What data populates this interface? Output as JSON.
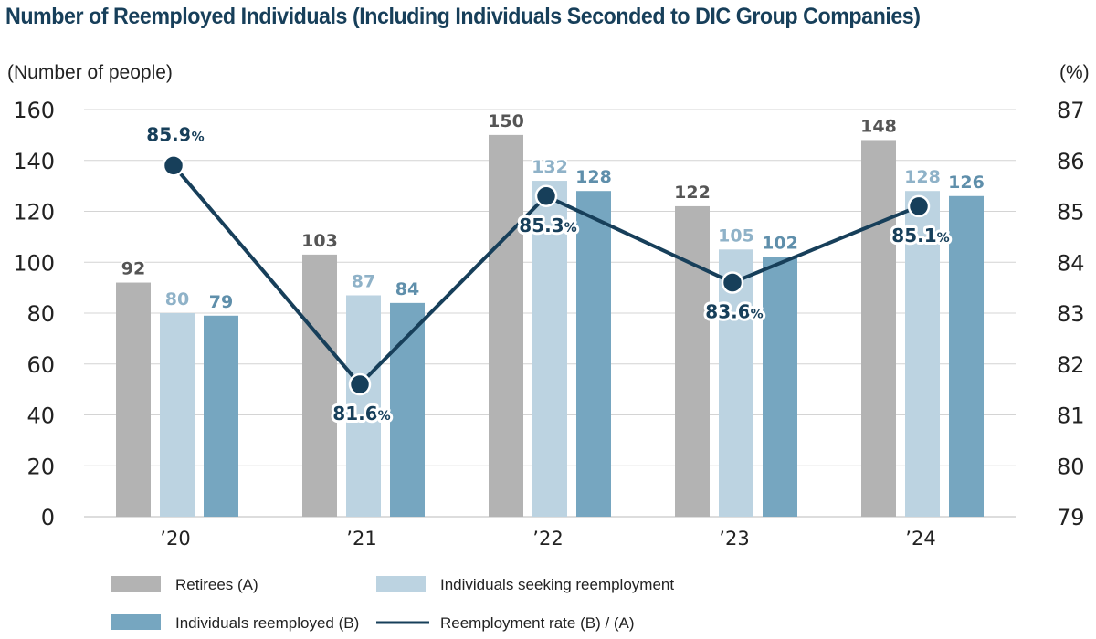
{
  "chart_data": {
    "type": "bar",
    "title": "Number of Reemployed Individuals (Including Individuals Seconded to DIC Group Companies)",
    "ylabel": "(Number of people)",
    "y2label": "(%)",
    "categories": [
      "’20",
      "’21",
      "’22",
      "’23",
      "’24"
    ],
    "ylim": [
      0,
      160
    ],
    "yticks": [
      0,
      20,
      40,
      60,
      80,
      100,
      120,
      140,
      160
    ],
    "y2lim": [
      79,
      87
    ],
    "y2ticks": [
      79,
      80,
      81,
      82,
      83,
      84,
      85,
      86,
      87
    ],
    "grid": true,
    "series": [
      {
        "name": "Retirees (A)",
        "kind": "bar",
        "color": "#b3b3b3",
        "label_color": "#555555",
        "values": [
          92,
          103,
          150,
          122,
          148
        ]
      },
      {
        "name": "Individuals seeking reemployment",
        "kind": "bar",
        "color": "#bcd3e1",
        "label_color": "#8fb2c8",
        "values": [
          80,
          87,
          132,
          105,
          128
        ]
      },
      {
        "name": "Individuals reemployed (B)",
        "kind": "bar",
        "color": "#76a6c0",
        "label_color": "#5f8fab",
        "values": [
          79,
          84,
          128,
          102,
          126
        ]
      },
      {
        "name": "Reemployment rate (B) / (A)",
        "kind": "line",
        "axis": "right",
        "color": "#173f5a",
        "values": [
          85.9,
          81.6,
          85.3,
          83.6,
          85.1
        ]
      }
    ],
    "rate_suffix": "%"
  }
}
